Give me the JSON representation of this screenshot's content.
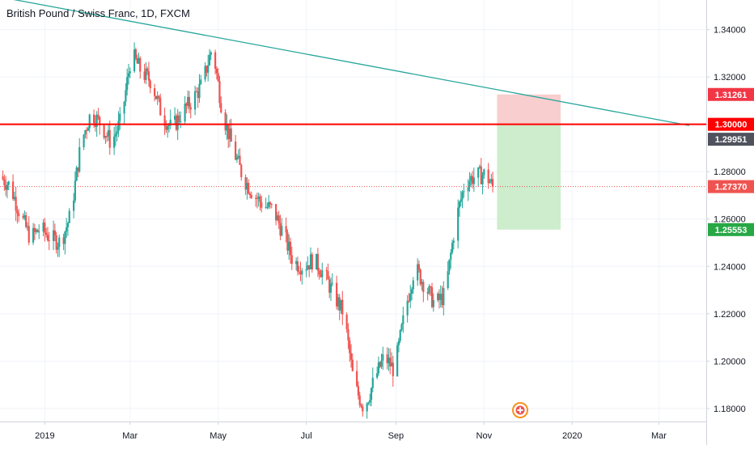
{
  "header": {
    "title": "British Pound / Swiss Franc, 1D, FXCM"
  },
  "colors": {
    "up": "#26a69a",
    "down": "#ef5350",
    "trendline": "#26a69a",
    "resistance": "#ff0000",
    "grid": "#f0f3fa",
    "axis_text": "#131722",
    "last_price": "#ef5350",
    "prev_label": "#50535e",
    "stop_zone": "#f8c6c6",
    "target_zone": "#c8ebc8",
    "target_label": "#27a845"
  },
  "chart_data": {
    "type": "candlestick",
    "title": "British Pound / Swiss Franc, 1D, FXCM",
    "y_ticks": [
      "1.34000",
      "1.32000",
      "1.30000",
      "1.28000",
      "1.26000",
      "1.24000",
      "1.22000",
      "1.20000",
      "1.18000"
    ],
    "x_ticks": [
      "2019",
      "Mar",
      "May",
      "Jul",
      "Sep",
      "Nov",
      "2020",
      "Mar"
    ],
    "ylim": [
      1.1745,
      1.3525
    ],
    "grid": true,
    "close_path": [
      [
        "2018-12-01",
        1.278
      ],
      [
        "2018-12-08",
        1.274
      ],
      [
        "2018-12-15",
        1.262
      ],
      [
        "2018-12-22",
        1.252
      ],
      [
        "2018-12-29",
        1.256
      ],
      [
        "2019-01-05",
        1.252
      ],
      [
        "2019-01-12",
        1.25
      ],
      [
        "2019-01-19",
        1.262
      ],
      [
        "2019-01-26",
        1.292
      ],
      [
        "2019-02-02",
        1.305
      ],
      [
        "2019-02-09",
        1.3
      ],
      [
        "2019-02-16",
        1.292
      ],
      [
        "2019-02-23",
        1.302
      ],
      [
        "2019-03-02",
        1.33
      ],
      [
        "2019-03-09",
        1.322
      ],
      [
        "2019-03-16",
        1.318
      ],
      [
        "2019-03-23",
        1.304
      ],
      [
        "2019-03-30",
        1.298
      ],
      [
        "2019-04-06",
        1.305
      ],
      [
        "2019-04-13",
        1.31
      ],
      [
        "2019-04-20",
        1.317
      ],
      [
        "2019-04-27",
        1.333
      ],
      [
        "2019-05-04",
        1.305
      ],
      [
        "2019-05-11",
        1.29
      ],
      [
        "2019-05-18",
        1.278
      ],
      [
        "2019-05-25",
        1.271
      ],
      [
        "2019-06-01",
        1.266
      ],
      [
        "2019-06-08",
        1.264
      ],
      [
        "2019-06-15",
        1.254
      ],
      [
        "2019-06-22",
        1.242
      ],
      [
        "2019-06-29",
        1.24
      ],
      [
        "2019-07-06",
        1.243
      ],
      [
        "2019-07-13",
        1.237
      ],
      [
        "2019-07-20",
        1.228
      ],
      [
        "2019-07-27",
        1.22
      ],
      [
        "2019-08-03",
        1.19
      ],
      [
        "2019-08-10",
        1.18
      ],
      [
        "2019-08-17",
        1.192
      ],
      [
        "2019-08-24",
        1.202
      ],
      [
        "2019-08-31",
        1.196
      ],
      [
        "2019-09-07",
        1.22
      ],
      [
        "2019-09-14",
        1.24
      ],
      [
        "2019-09-21",
        1.232
      ],
      [
        "2019-09-28",
        1.224
      ],
      [
        "2019-10-05",
        1.228
      ],
      [
        "2019-10-12",
        1.258
      ],
      [
        "2019-10-19",
        1.276
      ],
      [
        "2019-10-26",
        1.278
      ],
      [
        "2019-11-02",
        1.279
      ],
      [
        "2019-11-07",
        1.2737
      ]
    ],
    "trendline": {
      "points": [
        [
          "2018-11-07",
          1.3565
        ],
        [
          "2020-03-22",
          1.2995
        ]
      ]
    },
    "horizontal_line": {
      "value": 1.3,
      "label": "1.30000"
    },
    "last_price": {
      "value": 1.2737,
      "label": "1.27370"
    },
    "price_labels": [
      {
        "value": 1.31261,
        "label": "1.31261"
      },
      {
        "value": 1.29951,
        "label": "1.29951"
      },
      {
        "value": 1.25553,
        "label": "1.25553"
      }
    ],
    "position_tool": {
      "start": "2019-11-10",
      "end": "2019-12-24",
      "entry": 1.3,
      "stop": 1.31261,
      "target": 1.25553
    }
  }
}
